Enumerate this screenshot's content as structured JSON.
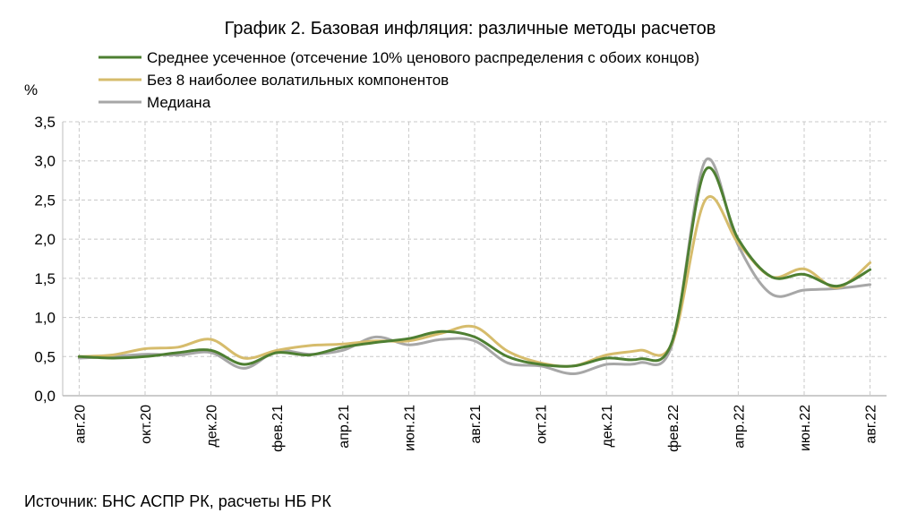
{
  "chart_data": {
    "type": "line",
    "title": "График 2. Базовая инфляция: различные методы расчетов",
    "ylabel": "%",
    "xlabel": "",
    "ylim": [
      0,
      3.5
    ],
    "y_ticks": [
      "0,0",
      "0,5",
      "1,0",
      "1,5",
      "2,0",
      "2,5",
      "3,0",
      "3,5"
    ],
    "y_tick_values": [
      0,
      0.5,
      1.0,
      1.5,
      2.0,
      2.5,
      3.0,
      3.5
    ],
    "x": [
      "2020-08",
      "2020-09",
      "2020-10",
      "2020-11",
      "2020-12",
      "2021-01",
      "2021-02",
      "2021-03",
      "2021-04",
      "2021-05",
      "2021-06",
      "2021-07",
      "2021-08",
      "2021-09",
      "2021-10",
      "2021-11",
      "2021-12",
      "2022-01",
      "2022-02",
      "2022-03",
      "2022-04",
      "2022-05",
      "2022-06",
      "2022-07",
      "2022-08"
    ],
    "x_tick_labels": [
      "авг.20",
      "окт.20",
      "дек.20",
      "фев.21",
      "апр.21",
      "июн.21",
      "авг.21",
      "окт.21",
      "дек.21",
      "фев.22",
      "апр.22",
      "июн.22",
      "авг.22"
    ],
    "x_tick_positions": [
      "2020-08",
      "2020-10",
      "2020-12",
      "2021-02",
      "2021-04",
      "2021-06",
      "2021-08",
      "2021-10",
      "2021-12",
      "2022-02",
      "2022-04",
      "2022-06",
      "2022-08"
    ],
    "grid": true,
    "legend_position": "top",
    "series": [
      {
        "name": "Среднее усеченное (отсечение 10% ценового распределения с обоих концов)",
        "color": "#4e7f32",
        "values": [
          0.5,
          0.48,
          0.5,
          0.55,
          0.58,
          0.4,
          0.55,
          0.52,
          0.62,
          0.68,
          0.73,
          0.82,
          0.75,
          0.5,
          0.4,
          0.38,
          0.48,
          0.47,
          0.7,
          2.88,
          2.0,
          1.52,
          1.55,
          1.4,
          1.61
        ]
      },
      {
        "name": "Без 8 наиболее волатильных компонентов",
        "color": "#d6bc6c",
        "values": [
          0.5,
          0.52,
          0.6,
          0.62,
          0.72,
          0.48,
          0.58,
          0.64,
          0.66,
          0.7,
          0.7,
          0.8,
          0.88,
          0.57,
          0.42,
          0.38,
          0.52,
          0.58,
          0.68,
          2.5,
          1.95,
          1.52,
          1.62,
          1.38,
          1.7
        ]
      },
      {
        "name": "Медиана",
        "color": "#a7a7a7",
        "values": [
          0.48,
          0.5,
          0.53,
          0.52,
          0.55,
          0.35,
          0.57,
          0.53,
          0.58,
          0.75,
          0.65,
          0.72,
          0.7,
          0.42,
          0.38,
          0.28,
          0.4,
          0.42,
          0.66,
          3.0,
          1.92,
          1.3,
          1.35,
          1.37,
          1.42
        ]
      }
    ]
  },
  "source": "Источник: БНС АСПР РК, расчеты НБ РК"
}
